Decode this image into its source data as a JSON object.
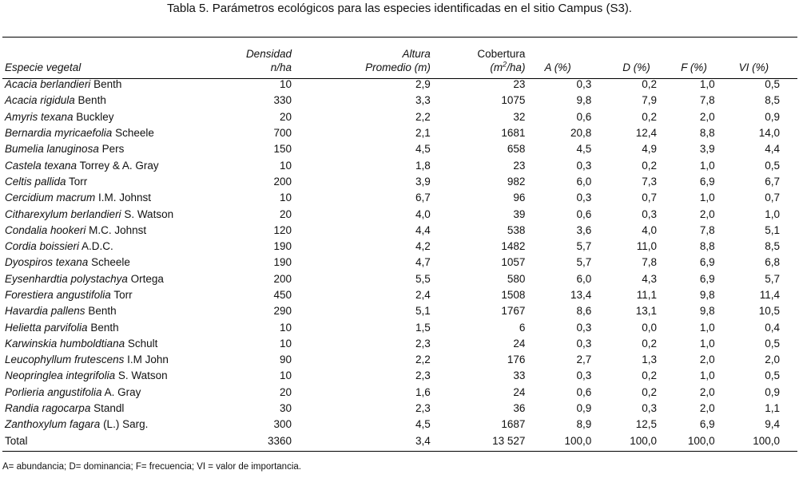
{
  "caption": "Tabla 5. Parámetros ecológicos para las especies identificadas en el sitio Campus (S3).",
  "headers": {
    "species": "Especie vegetal",
    "density_line1": "Densidad",
    "density_line2": "n/ha",
    "height_line1": "Altura",
    "height_line2": "Promedio (m)",
    "cover_line1": "Cobertura",
    "cover_line2_pre": "(m",
    "cover_line2_sup": "2",
    "cover_line2_post": "/ha)",
    "a": "A (%)",
    "d": "D (%)",
    "f": "F (%)",
    "vi": "VI (%)"
  },
  "rows": [
    {
      "genus": "Acacia berlandieri",
      "author": " Benth",
      "dens": "10",
      "alt": "2,9",
      "cob": "23",
      "a": "0,3",
      "d": "0,2",
      "f": "1,0",
      "vi": "0,5"
    },
    {
      "genus": "Acacia rigidula",
      "author": " Benth",
      "dens": "330",
      "alt": "3,3",
      "cob": "1075",
      "a": "9,8",
      "d": "7,9",
      "f": "7,8",
      "vi": "8,5"
    },
    {
      "genus": "Amyris texana",
      "author": " Buckley",
      "dens": "20",
      "alt": "2,2",
      "cob": "32",
      "a": "0,6",
      "d": "0,2",
      "f": "2,0",
      "vi": "0,9"
    },
    {
      "genus": "Bernardia myricaefolia",
      "author": " Scheele",
      "dens": "700",
      "alt": "2,1",
      "cob": "1681",
      "a": "20,8",
      "d": "12,4",
      "f": "8,8",
      "vi": "14,0"
    },
    {
      "genus": "Bumelia lanuginosa",
      "author": " Pers",
      "dens": "150",
      "alt": "4,5",
      "cob": "658",
      "a": "4,5",
      "d": "4,9",
      "f": "3,9",
      "vi": "4,4"
    },
    {
      "genus": "Castela texana",
      "author": " Torrey & A. Gray",
      "dens": "10",
      "alt": "1,8",
      "cob": "23",
      "a": "0,3",
      "d": "0,2",
      "f": "1,0",
      "vi": "0,5"
    },
    {
      "genus": "Celtis pallida",
      "author": " Torr",
      "dens": "200",
      "alt": "3,9",
      "cob": "982",
      "a": "6,0",
      "d": "7,3",
      "f": "6,9",
      "vi": "6,7"
    },
    {
      "genus": "Cercidium macrum",
      "author": " I.M. Johnst",
      "dens": "10",
      "alt": "6,7",
      "cob": "96",
      "a": "0,3",
      "d": "0,7",
      "f": "1,0",
      "vi": "0,7"
    },
    {
      "genus": "Citharexylum berlandieri",
      "author": " S. Watson",
      "dens": "20",
      "alt": "4,0",
      "cob": "39",
      "a": "0,6",
      "d": "0,3",
      "f": "2,0",
      "vi": "1,0"
    },
    {
      "genus": "Condalia hookeri",
      "author": " M.C. Johnst",
      "dens": "120",
      "alt": "4,4",
      "cob": "538",
      "a": "3,6",
      "d": "4,0",
      "f": "7,8",
      "vi": "5,1"
    },
    {
      "genus": "Cordia boissieri",
      "author": " A.D.C.",
      "dens": "190",
      "alt": "4,2",
      "cob": "1482",
      "a": "5,7",
      "d": "11,0",
      "f": "8,8",
      "vi": "8,5"
    },
    {
      "genus": "Dyospiros texana",
      "author": " Scheele",
      "dens": "190",
      "alt": "4,7",
      "cob": "1057",
      "a": "5,7",
      "d": "7,8",
      "f": "6,9",
      "vi": "6,8"
    },
    {
      "genus": "Eysenhardtia polystachya",
      "author": " Ortega",
      "dens": "200",
      "alt": "5,5",
      "cob": "580",
      "a": "6,0",
      "d": "4,3",
      "f": "6,9",
      "vi": "5,7"
    },
    {
      "genus": "Forestiera angustifolia",
      "author": " Torr",
      "dens": "450",
      "alt": "2,4",
      "cob": "1508",
      "a": "13,4",
      "d": "11,1",
      "f": "9,8",
      "vi": "11,4"
    },
    {
      "genus": "Havardia pallens",
      "author": " Benth",
      "dens": "290",
      "alt": "5,1",
      "cob": "1767",
      "a": "8,6",
      "d": "13,1",
      "f": "9,8",
      "vi": "10,5"
    },
    {
      "genus": "Helietta parvifolia",
      "author": " Benth",
      "dens": "10",
      "alt": "1,5",
      "cob": "6",
      "a": "0,3",
      "d": "0,0",
      "f": "1,0",
      "vi": "0,4"
    },
    {
      "genus": "Karwinskia humboldtiana",
      "author": " Schult",
      "dens": "10",
      "alt": "2,3",
      "cob": "24",
      "a": "0,3",
      "d": "0,2",
      "f": "1,0",
      "vi": "0,5"
    },
    {
      "genus": "Leucophyllum frutescens",
      "author": " I.M John",
      "dens": "90",
      "alt": "2,2",
      "cob": "176",
      "a": "2,7",
      "d": "1,3",
      "f": "2,0",
      "vi": "2,0"
    },
    {
      "genus": "Neopringlea integrifolia",
      "author": " S. Watson",
      "dens": "10",
      "alt": "2,3",
      "cob": "33",
      "a": "0,3",
      "d": "0,2",
      "f": "1,0",
      "vi": "0,5"
    },
    {
      "genus": "Porlieria angustifolia",
      "author": " A. Gray",
      "dens": "20",
      "alt": "1,6",
      "cob": "24",
      "a": "0,6",
      "d": "0,2",
      "f": "2,0",
      "vi": "0,9"
    },
    {
      "genus": "Randia ragocarpa",
      "author": " Standl",
      "dens": "30",
      "alt": "2,3",
      "cob": "36",
      "a": "0,9",
      "d": "0,3",
      "f": "2,0",
      "vi": "1,1"
    },
    {
      "genus": "Zanthoxylum fagara",
      "author": " (L.) Sarg.",
      "dens": "300",
      "alt": "4,5",
      "cob": "1687",
      "a": "8,9",
      "d": "12,5",
      "f": "6,9",
      "vi": "9,4"
    }
  ],
  "total": {
    "label": "Total",
    "dens": "3360",
    "alt": "3,4",
    "cob": "13 527",
    "a": "100,0",
    "d": "100,0",
    "f": "100,0",
    "vi": "100,0"
  },
  "footnote": "A= abundancia; D= dominancia; F= frecuencia; VI = valor de importancia."
}
